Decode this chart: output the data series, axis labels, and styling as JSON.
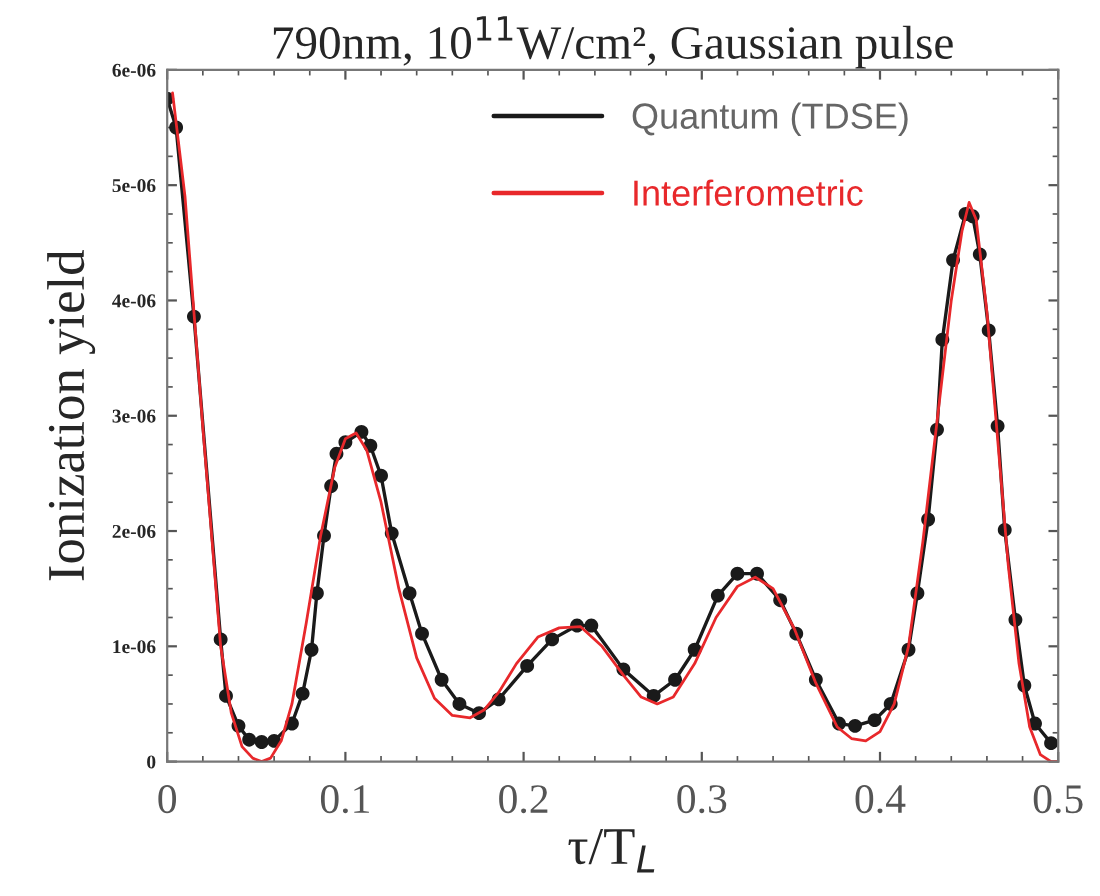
{
  "chart_data": {
    "type": "line",
    "title": "790nm, 10$^{11}$W/cm², Gaussian pulse",
    "xlabel": "τ/T$_{L}$",
    "ylabel": "Ionization yield",
    "xlim": [
      0,
      0.5
    ],
    "xticks": [
      0,
      0.1,
      0.2,
      0.3,
      0.4,
      0.5
    ],
    "ylim": [
      0,
      6e-06
    ],
    "yticks": [
      0,
      1e-06,
      2e-06,
      3e-06,
      4e-06,
      5e-06,
      6e-06
    ],
    "grid": false,
    "legend": "top",
    "series": [
      {
        "name": "Quantum (TDSE)",
        "color": "#1a1a1a",
        "marker": "circle",
        "x": [
          0,
          0.005,
          0.015,
          0.03,
          0.033,
          0.04,
          0.046,
          0.053,
          0.06,
          0.07,
          0.076,
          0.081,
          0.084,
          0.088,
          0.092,
          0.095,
          0.1,
          0.109,
          0.114,
          0.12,
          0.126,
          0.136,
          0.143,
          0.154,
          0.164,
          0.175,
          0.186,
          0.202,
          0.216,
          0.23,
          0.238,
          0.256,
          0.273,
          0.285,
          0.296,
          0.309,
          0.32,
          0.331,
          0.344,
          0.353,
          0.364,
          0.377,
          0.386,
          0.397,
          0.406,
          0.416,
          0.421,
          0.427,
          0.432,
          0.435,
          0.441,
          0.448,
          0.452,
          0.456,
          0.461,
          0.466,
          0.47,
          0.476,
          0.481,
          0.487,
          0.496
        ],
        "values": [
          5.75e-06,
          5.5e-06,
          3.86e-06,
          1.06e-06,
          5.7e-07,
          3.1e-07,
          1.9e-07,
          1.7e-07,
          1.8e-07,
          3.3e-07,
          5.9e-07,
          9.7e-07,
          1.46e-06,
          1.96e-06,
          2.39e-06,
          2.67e-06,
          2.77e-06,
          2.86e-06,
          2.74e-06,
          2.48e-06,
          1.98e-06,
          1.46e-06,
          1.11e-06,
          7.1e-07,
          5e-07,
          4.2e-07,
          5.4e-07,
          8.3e-07,
          1.06e-06,
          1.18e-06,
          1.18e-06,
          8e-07,
          5.7e-07,
          7.1e-07,
          9.7e-07,
          1.44e-06,
          1.63e-06,
          1.63e-06,
          1.4e-06,
          1.11e-06,
          7.1e-07,
          3.3e-07,
          3.1e-07,
          3.6e-07,
          5e-07,
          9.7e-07,
          1.46e-06,
          2.1e-06,
          2.88e-06,
          3.66e-06,
          4.35e-06,
          4.75e-06,
          4.73e-06,
          4.4e-06,
          3.74e-06,
          2.91e-06,
          2.01e-06,
          1.23e-06,
          6.6e-07,
          3.3e-07,
          1.6e-07
        ]
      },
      {
        "name": "Interferometric",
        "color": "#e8282b",
        "marker": "none",
        "x": [
          0.003,
          0.01,
          0.02,
          0.03,
          0.036,
          0.042,
          0.048,
          0.053,
          0.058,
          0.064,
          0.07,
          0.078,
          0.086,
          0.094,
          0.1,
          0.106,
          0.112,
          0.12,
          0.13,
          0.14,
          0.15,
          0.16,
          0.17,
          0.178,
          0.186,
          0.196,
          0.208,
          0.22,
          0.232,
          0.244,
          0.256,
          0.266,
          0.275,
          0.284,
          0.296,
          0.308,
          0.32,
          0.33,
          0.34,
          0.352,
          0.364,
          0.376,
          0.384,
          0.392,
          0.4,
          0.408,
          0.416,
          0.424,
          0.432,
          0.44,
          0.446,
          0.45,
          0.454,
          0.46,
          0.466,
          0.472,
          0.478,
          0.484,
          0.49,
          0.496,
          0.5
        ],
        "values": [
          5.8e-06,
          4.9e-06,
          2.9e-06,
          1e-06,
          4.2e-07,
          1.3e-07,
          3e-08,
          0,
          3e-08,
          1.8e-07,
          5e-07,
          1.2e-06,
          1.95e-06,
          2.55e-06,
          2.8e-06,
          2.85e-06,
          2.7e-06,
          2.25e-06,
          1.5e-06,
          9e-07,
          5.5e-07,
          4e-07,
          3.8e-07,
          4.5e-07,
          6e-07,
          8.5e-07,
          1.08e-06,
          1.16e-06,
          1.17e-06,
          1e-06,
          7.5e-07,
          5.6e-07,
          5e-07,
          5.6e-07,
          8.5e-07,
          1.25e-06,
          1.52e-06,
          1.6e-06,
          1.5e-06,
          1.15e-06,
          6.8e-07,
          3e-07,
          2e-07,
          1.8e-07,
          2.6e-07,
          5e-07,
          1e-06,
          1.9e-06,
          2.95e-06,
          4e-06,
          4.6e-06,
          4.85e-06,
          4.7e-06,
          3.9e-06,
          2.8e-06,
          1.7e-06,
          8.5e-07,
          3e-07,
          6e-08,
          0,
          0
        ]
      }
    ]
  }
}
